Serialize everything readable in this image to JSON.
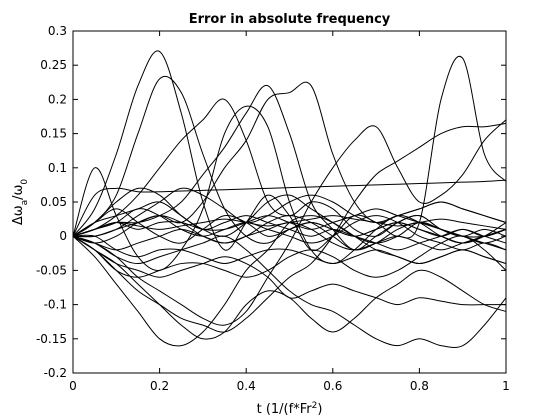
{
  "chart_data": {
    "type": "line",
    "title": "Error in absolute frequency",
    "xlabel": "t (1/(f*Fr²)",
    "xlabel_parts": {
      "main": "t (1/(f*Fr",
      "sup": "2",
      "end": ")"
    },
    "ylabel_parts": {
      "delta": "Δ",
      "w1": "ω",
      "sub1": "a",
      "slash": "/",
      "w2": "ω",
      "sub2": "0"
    },
    "xlim": [
      0,
      1
    ],
    "ylim": [
      -0.2,
      0.3
    ],
    "xticks": [
      0,
      0.2,
      0.4,
      0.6,
      0.8,
      1
    ],
    "xtick_labels": [
      "0",
      "0.2",
      "0.4",
      "0.6",
      "0.8",
      "1"
    ],
    "yticks": [
      -0.2,
      -0.15,
      -0.1,
      -0.05,
      0,
      0.05,
      0.1,
      0.15,
      0.2,
      0.25,
      0.3
    ],
    "ytick_labels": [
      "-0.2",
      "-0.15",
      "-0.1",
      "-0.05",
      "0",
      "0.05",
      "0.1",
      "0.15",
      "0.2",
      "0.25",
      "0.3"
    ],
    "grid": false,
    "line_color": "#000000",
    "x": [
      0,
      0.05,
      0.1,
      0.15,
      0.2,
      0.25,
      0.3,
      0.35,
      0.4,
      0.45,
      0.5,
      0.55,
      0.6,
      0.65,
      0.7,
      0.75,
      0.8,
      0.85,
      0.9,
      0.95,
      1
    ],
    "series": [
      {
        "values": [
          0,
          0.04,
          0.12,
          0.22,
          0.27,
          0.18,
          0.05,
          -0.02,
          0.02,
          0.06,
          0.03,
          -0.02,
          0.0,
          0.03,
          0.02,
          0.0,
          0.02,
          0.2,
          0.26,
          0.12,
          0.08
        ]
      },
      {
        "values": [
          0,
          0.02,
          0.06,
          0.15,
          0.23,
          0.21,
          0.12,
          0.04,
          0.0,
          -0.01,
          0.01,
          0.02,
          0.01,
          0.0,
          0.01,
          0.02,
          0.01,
          0.0,
          0.01,
          0.0,
          0.01
        ]
      },
      {
        "values": [
          0,
          0.1,
          0.03,
          -0.03,
          -0.05,
          -0.02,
          0.04,
          0.15,
          0.19,
          0.16,
          0.05,
          -0.02,
          -0.04,
          -0.02,
          0.01,
          0.03,
          0.02,
          0.0,
          -0.01,
          0.0,
          0.02
        ]
      },
      {
        "values": [
          0,
          0.01,
          0.03,
          0.06,
          0.1,
          0.14,
          0.17,
          0.2,
          0.14,
          0.05,
          0.03,
          0.05,
          0.04,
          0.01,
          0.0,
          0.02,
          0.03,
          0.01,
          0.0,
          0.01,
          0.0
        ]
      },
      {
        "values": [
          0,
          0.01,
          0.02,
          0.02,
          0.03,
          0.05,
          0.09,
          0.13,
          0.18,
          0.22,
          0.15,
          0.05,
          0.01,
          -0.02,
          0.0,
          0.02,
          0.03,
          0.01,
          0.0,
          0.0,
          0.01
        ]
      },
      {
        "values": [
          0,
          0.0,
          0.01,
          0.02,
          0.03,
          0.02,
          0.05,
          0.1,
          0.14,
          0.2,
          0.21,
          0.22,
          0.12,
          0.05,
          0.02,
          0.03,
          0.04,
          0.05,
          0.04,
          0.03,
          0.02
        ]
      },
      {
        "values": [
          0,
          -0.01,
          -0.03,
          -0.06,
          -0.08,
          -0.1,
          -0.12,
          -0.13,
          -0.11,
          -0.06,
          -0.01,
          0.05,
          0.1,
          0.14,
          0.16,
          0.1,
          0.05,
          0.06,
          0.09,
          0.14,
          0.17
        ]
      },
      {
        "values": [
          0,
          -0.02,
          -0.05,
          -0.08,
          -0.1,
          -0.12,
          -0.13,
          -0.14,
          -0.12,
          -0.09,
          -0.06,
          -0.04,
          0.0,
          0.05,
          0.09,
          0.11,
          0.13,
          0.15,
          0.16,
          0.16,
          0.165
        ]
      },
      {
        "values": [
          0,
          -0.03,
          -0.07,
          -0.11,
          -0.15,
          -0.16,
          -0.14,
          -0.1,
          -0.05,
          -0.02,
          0.02,
          0.03,
          0.02,
          0.0,
          -0.02,
          -0.03,
          -0.04,
          -0.03,
          -0.02,
          -0.03,
          -0.04
        ]
      },
      {
        "values": [
          0,
          -0.02,
          -0.04,
          -0.07,
          -0.1,
          -0.13,
          -0.15,
          -0.14,
          -0.1,
          -0.08,
          -0.09,
          -0.12,
          -0.14,
          -0.12,
          -0.09,
          -0.07,
          -0.05,
          -0.06,
          -0.08,
          -0.1,
          -0.11
        ]
      },
      {
        "values": [
          0,
          -0.01,
          -0.03,
          -0.04,
          -0.03,
          -0.02,
          -0.01,
          0.0,
          -0.02,
          -0.05,
          -0.08,
          -0.1,
          -0.11,
          -0.13,
          -0.15,
          -0.16,
          -0.15,
          -0.16,
          -0.16,
          -0.13,
          -0.09
        ]
      },
      {
        "values": [
          0,
          -0.02,
          -0.04,
          -0.05,
          -0.06,
          -0.05,
          -0.04,
          -0.03,
          -0.04,
          -0.06,
          -0.09,
          -0.08,
          -0.07,
          -0.08,
          -0.09,
          -0.1,
          -0.09,
          -0.095,
          -0.1,
          -0.1,
          -0.1
        ]
      },
      {
        "values": [
          0,
          -0.02,
          -0.05,
          -0.06,
          -0.05,
          -0.04,
          -0.04,
          -0.05,
          -0.06,
          -0.05,
          -0.03,
          -0.02,
          -0.03,
          -0.05,
          -0.06,
          -0.05,
          -0.03,
          -0.01,
          0.0,
          -0.02,
          -0.05
        ]
      },
      {
        "values": [
          0,
          0.0,
          -0.02,
          -0.03,
          -0.02,
          -0.02,
          -0.03,
          -0.04,
          -0.03,
          -0.02,
          -0.02,
          -0.03,
          -0.04,
          -0.03,
          -0.02,
          -0.03,
          -0.04,
          -0.03,
          -0.02,
          -0.03,
          -0.04
        ]
      },
      {
        "values": [
          0,
          0.06,
          0.07,
          0.065,
          0.065,
          0.066,
          0.067,
          0.068,
          0.069,
          0.07,
          0.071,
          0.072,
          0.073,
          0.074,
          0.075,
          0.076,
          0.077,
          0.078,
          0.079,
          0.08,
          0.082
        ]
      },
      {
        "values": [
          0,
          0.02,
          0.05,
          0.07,
          0.06,
          0.03,
          0.01,
          0.0,
          0.02,
          0.05,
          0.06,
          0.04,
          0.02,
          0.0,
          -0.01,
          0.0,
          0.02,
          0.01,
          0.0,
          0.0,
          0.01
        ]
      },
      {
        "values": [
          0,
          0.01,
          0.02,
          0.04,
          0.03,
          0.01,
          0.0,
          0.01,
          0.02,
          0.01,
          0.0,
          -0.01,
          0.0,
          0.02,
          0.03,
          0.02,
          0.0,
          -0.01,
          -0.02,
          -0.01,
          -0.02
        ]
      },
      {
        "values": [
          0,
          0.0,
          0.01,
          0.03,
          0.05,
          0.07,
          0.06,
          0.04,
          0.02,
          0.03,
          0.05,
          0.06,
          0.05,
          0.03,
          0.02,
          0.03,
          0.04,
          0.05,
          0.04,
          0.03,
          0.02
        ]
      },
      {
        "values": [
          0,
          0.02,
          0.04,
          0.02,
          0.0,
          -0.01,
          0.01,
          0.03,
          0.02,
          0.0,
          0.01,
          0.02,
          0.01,
          0.0,
          0.01,
          0.02,
          0.01,
          0.0,
          -0.01,
          0.0,
          0.01
        ]
      },
      {
        "values": [
          0,
          -0.01,
          0.0,
          0.02,
          0.03,
          0.02,
          0.0,
          -0.01,
          0.0,
          0.02,
          0.03,
          0.02,
          0.0,
          -0.02,
          -0.01,
          0.01,
          0.02,
          0.01,
          0.0,
          -0.01,
          0.0
        ]
      },
      {
        "values": [
          0,
          0.01,
          0.02,
          0.015,
          0.01,
          0.015,
          0.02,
          0.025,
          0.02,
          0.015,
          0.02,
          0.025,
          0.03,
          0.025,
          0.02,
          0.015,
          0.02,
          0.025,
          0.02,
          0.015,
          0.01
        ]
      },
      {
        "values": [
          0,
          -0.01,
          -0.02,
          -0.01,
          0.0,
          0.01,
          0.0,
          -0.01,
          0.0,
          0.01,
          0.02,
          0.01,
          -0.01,
          -0.02,
          -0.01,
          0.0,
          -0.01,
          -0.02,
          -0.01,
          0.0,
          0.01
        ]
      },
      {
        "values": [
          0,
          0.02,
          0.03,
          0.04,
          0.05,
          0.03,
          0.01,
          0.02,
          0.03,
          0.02,
          0.01,
          0.0,
          0.01,
          0.0,
          -0.01,
          -0.02,
          -0.01,
          0.0,
          0.01,
          0.0,
          -0.01
        ]
      },
      {
        "values": [
          0,
          0.01,
          0.02,
          0.01,
          0.02,
          0.02,
          0.01,
          0.01,
          0.02,
          0.03,
          0.02,
          0.01,
          0.02,
          0.03,
          0.04,
          0.03,
          0.02,
          0.01,
          0.0,
          -0.01,
          -0.02
        ]
      }
    ]
  }
}
